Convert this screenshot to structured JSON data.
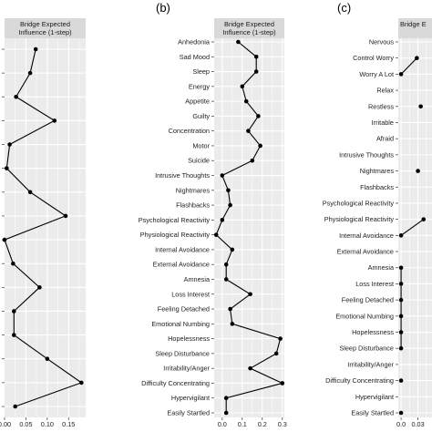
{
  "chart_data": [
    {
      "type": "line",
      "panel_label": "",
      "strip_title": "Bridge Expected Influence (1-step)",
      "xlim": [
        0,
        0.19
      ],
      "xticks": [
        "0.00",
        "0.05",
        "0.10",
        "0.15"
      ],
      "xtick_values": [
        0,
        0.05,
        0.1,
        0.15
      ],
      "grid": true,
      "values": [
        0.073,
        0.06,
        0.027,
        0.117,
        0.012,
        0.005,
        0.06,
        0.143,
        0.0,
        0.02,
        0.082,
        0.022,
        0.022,
        0.1,
        0.18,
        0.025
      ]
    },
    {
      "type": "line",
      "panel_label": "(b)",
      "strip_title": "Bridge Expected Influence (1-step)",
      "xlim": [
        -0.04,
        0.31
      ],
      "xticks": [
        "0.0",
        "0.1",
        "0.2",
        "0.3"
      ],
      "xtick_values": [
        0,
        0.1,
        0.2,
        0.3
      ],
      "grid": true,
      "categories": [
        "Anhedonia",
        "Sad Mood",
        "Sleep",
        "Energy",
        "Appetite",
        "Guilty",
        "Concentration",
        "Motor",
        "Suicide",
        "Intrusive Thoughts",
        "Nightmares",
        "Flashbacks",
        "Psychological Reactivity",
        "Physiological Reactivity",
        "Internal Avoidance",
        "External Avoidance",
        "Amnesia",
        "Loss Interest",
        "Feeling Detached",
        "Emotional Numbing",
        "Hopelessness",
        "Sleep Disturbance",
        "Irritability/Anger",
        "Difficulty Concentrating",
        "Hypervigilant",
        "Easily Startled"
      ],
      "values": [
        0.08,
        0.17,
        0.17,
        0.1,
        0.12,
        0.18,
        0.13,
        0.19,
        0.15,
        0.0,
        0.03,
        0.04,
        0.0,
        -0.03,
        0.05,
        0.02,
        0.02,
        0.14,
        0.04,
        0.05,
        0.29,
        0.27,
        0.14,
        0.3,
        0.02,
        0.02
      ]
    },
    {
      "type": "line",
      "panel_label": "(c)",
      "strip_title": "Bridge E",
      "xlim": [
        -0.005,
        0.055
      ],
      "xticks": [
        "0.0",
        "0.03"
      ],
      "xtick_values": [
        0,
        0.03
      ],
      "grid": true,
      "categories": [
        "Nervous",
        "Control Worry",
        "Worry A Lot",
        "Relax",
        "Restless",
        "Irritable",
        "Afraid",
        "Intrusive Thoughts",
        "Nightmares",
        "Flashbacks",
        "Psychological Reactivity",
        "Physiological Reactivity",
        "Internal Avoidance",
        "External Avoidance",
        "Amnesia",
        "Loss Interest",
        "Feeling Detached",
        "Emotional Numbing",
        "Hopelessness",
        "Sleep Disturbance",
        "Irritability/Anger",
        "Difficulty Concentrating",
        "Hypervigilant",
        "Easily Startled"
      ],
      "values": [
        null,
        0.028,
        0.0,
        null,
        0.035,
        null,
        null,
        null,
        0.03,
        null,
        null,
        0.04,
        0.0,
        null,
        0.0,
        0.0,
        0.0,
        0.0,
        0.0,
        0.0,
        null,
        0.0,
        null,
        0.0
      ]
    }
  ]
}
